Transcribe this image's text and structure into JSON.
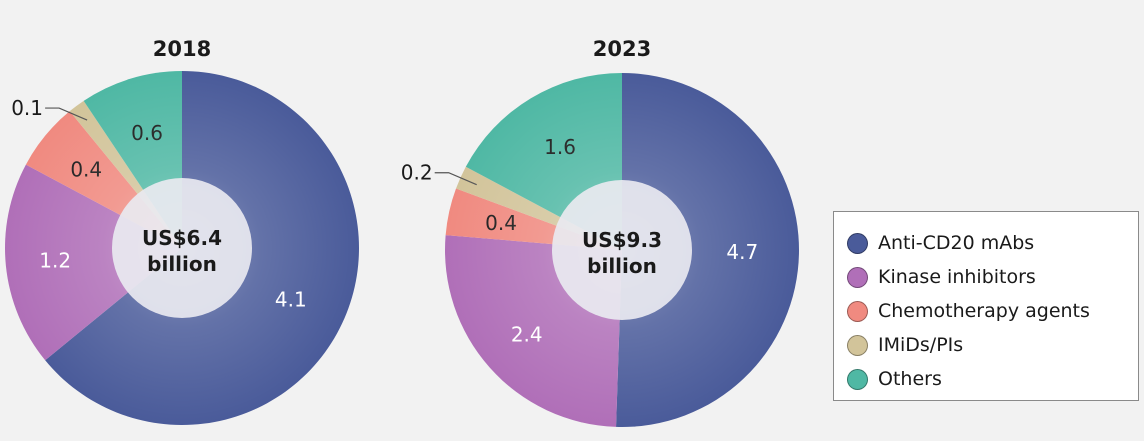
{
  "chart_data": [
    {
      "type": "pie",
      "title": "2018",
      "center_label": [
        "US$6.4",
        "billion"
      ],
      "categories": [
        "Anti-CD20 mAbs",
        "Kinase inhibitors",
        "Chemotherapy agents",
        "IMiDs/PIs",
        "Others"
      ],
      "values": [
        4.1,
        1.2,
        0.4,
        0.1,
        0.6
      ],
      "value_labels": [
        "4.1",
        "1.2",
        "0.4",
        "0.1",
        "0.6"
      ]
    },
    {
      "type": "pie",
      "title": "2023",
      "center_label": [
        "US$9.3",
        "billion"
      ],
      "categories": [
        "Anti-CD20 mAbs",
        "Kinase inhibitors",
        "Chemotherapy agents",
        "IMiDs/PIs",
        "Others"
      ],
      "values": [
        4.7,
        2.4,
        0.4,
        0.2,
        1.6
      ],
      "value_labels": [
        "4.7",
        "2.4",
        "0.4",
        "0.2",
        "1.6"
      ]
    }
  ],
  "legend": {
    "placement": "right",
    "items": [
      {
        "label": "Anti-CD20 mAbs",
        "color": "#4a5b9a"
      },
      {
        "label": "Kinase inhibitors",
        "color": "#b06fb8"
      },
      {
        "label": "Chemotherapy agents",
        "color": "#f08a80"
      },
      {
        "label": "IMiDs/PIs",
        "color": "#d2c49a"
      },
      {
        "label": "Others",
        "color": "#4fb8a4"
      }
    ]
  },
  "colors": {
    "center_disc": "#e9e9f0",
    "label_on_dark": "#ffffff",
    "label_on_light": "#1a1a1a",
    "leader_line": "#555555"
  }
}
